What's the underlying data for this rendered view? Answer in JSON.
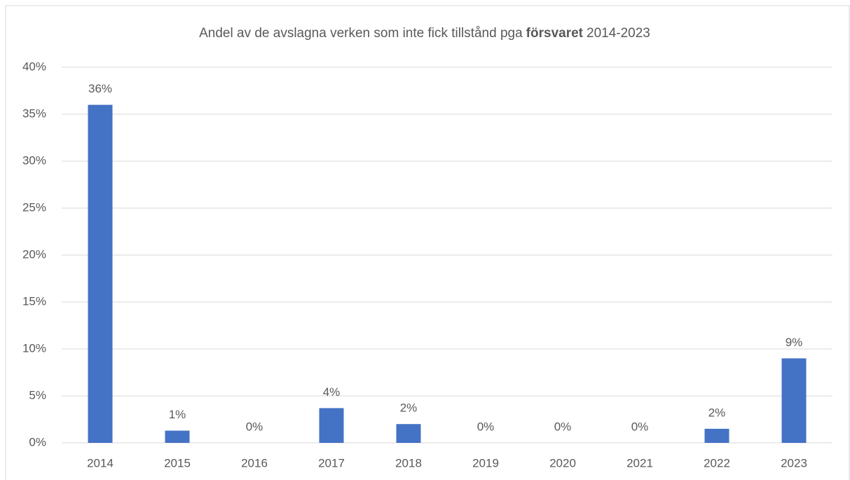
{
  "chart_data": {
    "type": "bar",
    "title_parts": [
      "Andel av de avslagna verken som inte fick tillstånd pga",
      "försvaret",
      "2014-2023"
    ],
    "categories": [
      "2014",
      "2015",
      "2016",
      "2017",
      "2018",
      "2019",
      "2020",
      "2021",
      "2022",
      "2023"
    ],
    "values": [
      36,
      1.3,
      0,
      3.7,
      2,
      0,
      0,
      0,
      1.5,
      9
    ],
    "value_labels": [
      "36%",
      "1%",
      "0%",
      "4%",
      "2%",
      "0%",
      "0%",
      "0%",
      "2%",
      "9%"
    ],
    "color": "#4472c4",
    "ylim": [
      0,
      40
    ],
    "yticks": [
      {
        "value": 0,
        "label": "0%"
      },
      {
        "value": 5,
        "label": "5%"
      },
      {
        "value": 10,
        "label": "10%"
      },
      {
        "value": 15,
        "label": "15%"
      },
      {
        "value": 20,
        "label": "20%"
      },
      {
        "value": 25,
        "label": "25%"
      },
      {
        "value": 30,
        "label": "30%"
      },
      {
        "value": 35,
        "label": "35%"
      },
      {
        "value": 40,
        "label": "40%"
      }
    ],
    "grid": true
  }
}
